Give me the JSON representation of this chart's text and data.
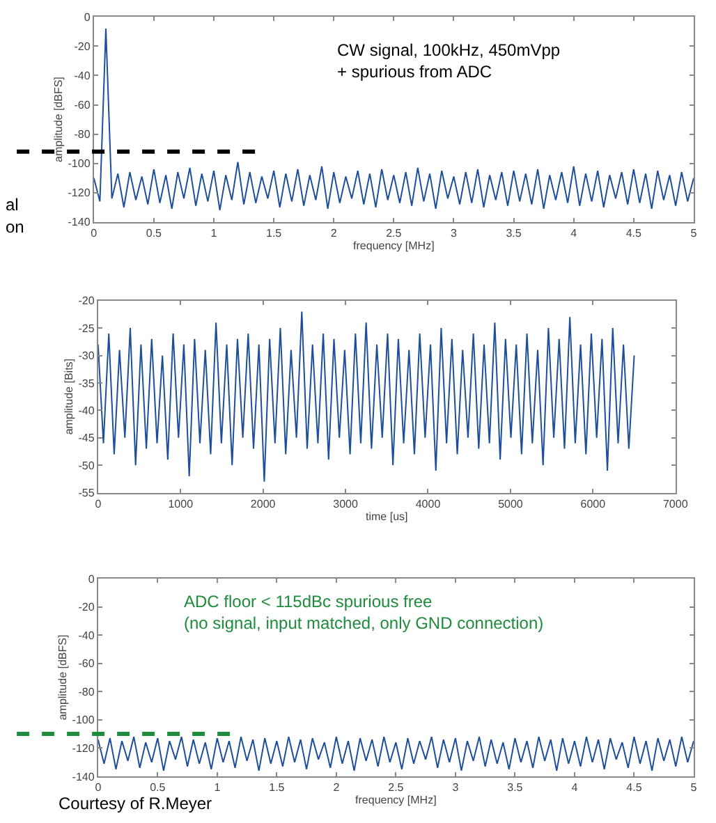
{
  "chart_data": [
    {
      "type": "line",
      "xlabel": "frequency [MHz]",
      "ylabel": "amplitude [dBFS]",
      "x": [
        0,
        0.05,
        0.1,
        0.15,
        0.2,
        0.25,
        0.3,
        0.35,
        0.4,
        0.45,
        0.5,
        0.55,
        0.6,
        0.65,
        0.7,
        0.75,
        0.8,
        0.85,
        0.9,
        0.95,
        1,
        1.05,
        1.1,
        1.15,
        1.2,
        1.25,
        1.3,
        1.35,
        1.4,
        1.45,
        1.5,
        1.55,
        1.6,
        1.65,
        1.7,
        1.75,
        1.8,
        1.85,
        1.9,
        1.95,
        2,
        2.05,
        2.1,
        2.15,
        2.2,
        2.25,
        2.3,
        2.35,
        2.4,
        2.45,
        2.5,
        2.55,
        2.6,
        2.65,
        2.7,
        2.75,
        2.8,
        2.85,
        2.9,
        2.95,
        3,
        3.05,
        3.1,
        3.15,
        3.2,
        3.25,
        3.3,
        3.35,
        3.4,
        3.45,
        3.5,
        3.55,
        3.6,
        3.65,
        3.7,
        3.75,
        3.8,
        3.85,
        3.9,
        3.95,
        4,
        4.05,
        4.1,
        4.15,
        4.2,
        4.25,
        4.3,
        4.35,
        4.4,
        4.45,
        4.5,
        4.55,
        4.6,
        4.65,
        4.7,
        4.75,
        4.8,
        4.85,
        4.9,
        4.95,
        5
      ],
      "series": [
        {
          "color": "#1f4e9c",
          "values": [
            -110,
            -126,
            -8,
            -124,
            -107,
            -130,
            -106,
            -125,
            -109,
            -128,
            -104,
            -127,
            -108,
            -131,
            -106,
            -124,
            -103,
            -129,
            -107,
            -126,
            -105,
            -132,
            -108,
            -125,
            -99,
            -128,
            -106,
            -127,
            -109,
            -124,
            -105,
            -130,
            -107,
            -126,
            -104,
            -129,
            -108,
            -125,
            -102,
            -131,
            -106,
            -127,
            -109,
            -124,
            -105,
            -128,
            -107,
            -130,
            -104,
            -125,
            -108,
            -127,
            -106,
            -129,
            -103,
            -126,
            -107,
            -131,
            -105,
            -124,
            -109,
            -128,
            -106,
            -127,
            -104,
            -130,
            -108,
            -125,
            -106,
            -129,
            -105,
            -126,
            -107,
            -128,
            -104,
            -131,
            -108,
            -125,
            -106,
            -127,
            -102,
            -129,
            -107,
            -126,
            -105,
            -130,
            -108,
            -124,
            -106,
            -128,
            -104,
            -127,
            -107,
            -131,
            -105,
            -125,
            -108,
            -129,
            -106,
            -126,
            -110
          ]
        }
      ],
      "xlim": [
        0,
        5
      ],
      "ylim": [
        -140,
        0
      ],
      "xticks": [
        0,
        0.5,
        1,
        1.5,
        2,
        2.5,
        3,
        3.5,
        4,
        4.5,
        5
      ],
      "yticks": [
        -140,
        -120,
        -100,
        -80,
        -60,
        -40,
        -20,
        0
      ],
      "annotations": [
        "CW signal, 100kHz, 450mVpp\n+ spurious from ADC",
        "al",
        "on"
      ],
      "ref_lines": [
        {
          "axis": "y",
          "value": -92,
          "color": "#000000",
          "line_style": "dashed"
        }
      ]
    },
    {
      "type": "line",
      "xlabel": "time [us]",
      "ylabel": "amplitude [Bits]",
      "x": [
        0,
        65,
        130,
        195,
        260,
        325,
        390,
        455,
        520,
        585,
        650,
        715,
        780,
        845,
        910,
        975,
        1040,
        1105,
        1170,
        1235,
        1300,
        1365,
        1430,
        1495,
        1560,
        1625,
        1690,
        1755,
        1820,
        1885,
        1950,
        2015,
        2080,
        2145,
        2210,
        2275,
        2340,
        2405,
        2470,
        2535,
        2600,
        2665,
        2730,
        2795,
        2860,
        2925,
        2990,
        3055,
        3120,
        3185,
        3250,
        3315,
        3380,
        3445,
        3510,
        3575,
        3640,
        3705,
        3770,
        3835,
        3900,
        3965,
        4030,
        4095,
        4160,
        4225,
        4290,
        4355,
        4420,
        4485,
        4550,
        4615,
        4680,
        4745,
        4810,
        4875,
        4940,
        5005,
        5070,
        5135,
        5200,
        5265,
        5330,
        5395,
        5460,
        5525,
        5590,
        5655,
        5720,
        5785,
        5850,
        5915,
        5980,
        6045,
        6110,
        6175,
        6240,
        6305,
        6370,
        6435,
        6500
      ],
      "series": [
        {
          "color": "#1f4e9c",
          "values": [
            -28,
            -46,
            -26,
            -48,
            -29,
            -45,
            -25,
            -50,
            -28,
            -47,
            -27,
            -46,
            -30,
            -49,
            -26,
            -45,
            -28,
            -52,
            -27,
            -46,
            -29,
            -48,
            -24,
            -46,
            -28,
            -50,
            -27,
            -45,
            -26,
            -47,
            -28,
            -53,
            -27,
            -46,
            -25,
            -48,
            -29,
            -45,
            -22,
            -47,
            -28,
            -46,
            -26,
            -49,
            -27,
            -45,
            -29,
            -48,
            -26,
            -46,
            -24,
            -47,
            -28,
            -45,
            -26,
            -50,
            -27,
            -46,
            -29,
            -48,
            -26,
            -45,
            -28,
            -51,
            -25,
            -46,
            -27,
            -48,
            -29,
            -45,
            -26,
            -47,
            -28,
            -46,
            -24,
            -49,
            -27,
            -45,
            -28,
            -48,
            -26,
            -46,
            -29,
            -50,
            -25,
            -45,
            -27,
            -47,
            -23,
            -46,
            -28,
            -48,
            -26,
            -45,
            -27,
            -51,
            -25,
            -46,
            -28,
            -47,
            -30
          ]
        }
      ],
      "xlim": [
        0,
        7000
      ],
      "ylim": [
        -55,
        -20
      ],
      "xticks": [
        0,
        1000,
        2000,
        3000,
        4000,
        5000,
        6000,
        7000
      ],
      "yticks": [
        -55,
        -50,
        -45,
        -40,
        -35,
        -30,
        -25,
        -20
      ]
    },
    {
      "type": "line",
      "xlabel": "frequency [MHz]",
      "ylabel": "amplitude [dBFS]",
      "x": [
        0,
        0.05,
        0.1,
        0.15,
        0.2,
        0.25,
        0.3,
        0.35,
        0.4,
        0.45,
        0.5,
        0.55,
        0.6,
        0.65,
        0.7,
        0.75,
        0.8,
        0.85,
        0.9,
        0.95,
        1,
        1.05,
        1.1,
        1.15,
        1.2,
        1.25,
        1.3,
        1.35,
        1.4,
        1.45,
        1.5,
        1.55,
        1.6,
        1.65,
        1.7,
        1.75,
        1.8,
        1.85,
        1.9,
        1.95,
        2,
        2.05,
        2.1,
        2.15,
        2.2,
        2.25,
        2.3,
        2.35,
        2.4,
        2.45,
        2.5,
        2.55,
        2.6,
        2.65,
        2.7,
        2.75,
        2.8,
        2.85,
        2.9,
        2.95,
        3,
        3.05,
        3.1,
        3.15,
        3.2,
        3.25,
        3.3,
        3.35,
        3.4,
        3.45,
        3.5,
        3.55,
        3.6,
        3.65,
        3.7,
        3.75,
        3.8,
        3.85,
        3.9,
        3.95,
        4,
        4.05,
        4.1,
        4.15,
        4.2,
        4.25,
        4.3,
        4.35,
        4.4,
        4.45,
        4.5,
        4.55,
        4.6,
        4.65,
        4.7,
        4.75,
        4.8,
        4.85,
        4.9,
        4.95,
        5
      ],
      "series": [
        {
          "color": "#1f4e9c",
          "values": [
            -114,
            -131,
            -113,
            -135,
            -115,
            -129,
            -112,
            -134,
            -116,
            -130,
            -113,
            -136,
            -115,
            -128,
            -112,
            -133,
            -114,
            -131,
            -116,
            -135,
            -113,
            -130,
            -115,
            -134,
            -112,
            -129,
            -114,
            -136,
            -113,
            -131,
            -115,
            -133,
            -112,
            -130,
            -114,
            -135,
            -113,
            -128,
            -116,
            -134,
            -112,
            -131,
            -115,
            -136,
            -113,
            -129,
            -114,
            -133,
            -112,
            -130,
            -116,
            -135,
            -113,
            -131,
            -115,
            -128,
            -112,
            -134,
            -114,
            -130,
            -113,
            -136,
            -115,
            -129,
            -112,
            -133,
            -114,
            -131,
            -116,
            -135,
            -113,
            -130,
            -115,
            -134,
            -112,
            -129,
            -114,
            -136,
            -113,
            -131,
            -115,
            -133,
            -112,
            -130,
            -114,
            -135,
            -113,
            -128,
            -116,
            -134,
            -112,
            -131,
            -115,
            -136,
            -113,
            -129,
            -114,
            -133,
            -112,
            -130,
            -115
          ]
        }
      ],
      "xlim": [
        0,
        5
      ],
      "ylim": [
        -140,
        0
      ],
      "xticks": [
        0,
        0.5,
        1,
        1.5,
        2,
        2.5,
        3,
        3.5,
        4,
        4.5,
        5
      ],
      "yticks": [
        -140,
        -120,
        -100,
        -80,
        -60,
        -40,
        -20,
        0
      ],
      "annotations": [
        "ADC floor < 115dBc spurious free\n(no signal, input matched, only GND connection)",
        "Courtesy of R.Meyer"
      ],
      "ref_lines": [
        {
          "axis": "y",
          "value": -110,
          "color": "#1e8c3c",
          "line_style": "dashed"
        }
      ]
    }
  ]
}
